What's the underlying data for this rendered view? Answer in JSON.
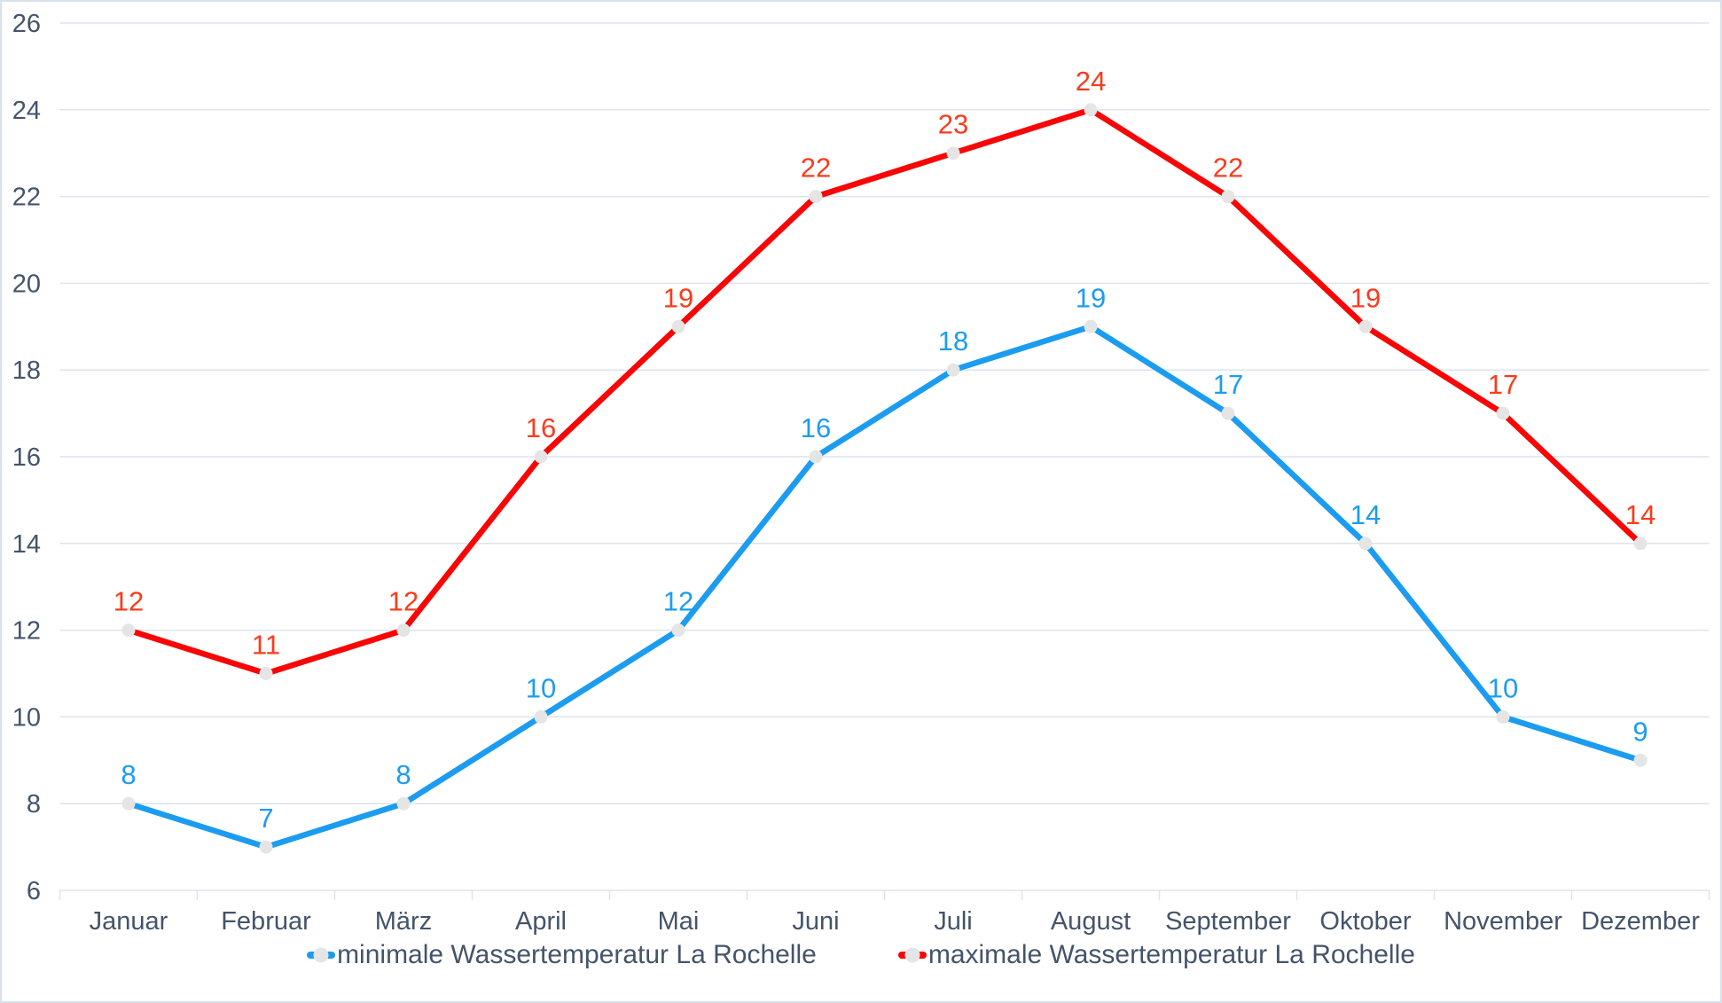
{
  "chart_data": {
    "type": "line",
    "title": "",
    "xlabel": "",
    "ylabel": "",
    "categories": [
      "Januar",
      "Februar",
      "März",
      "April",
      "Mai",
      "Juni",
      "Juli",
      "August",
      "September",
      "Oktober",
      "November",
      "Dezember"
    ],
    "y_ticks": [
      6,
      8,
      10,
      12,
      14,
      16,
      18,
      20,
      22,
      24,
      26
    ],
    "ylim": [
      6,
      26
    ],
    "grid": true,
    "legend_position": "bottom",
    "series": [
      {
        "name": "minimale Wassertemperatur La Rochelle",
        "color": "#1c9cf0",
        "label_color": "#1c9cf0",
        "values": [
          8,
          7,
          8,
          10,
          12,
          16,
          18,
          19,
          17,
          14,
          10,
          9
        ]
      },
      {
        "name": "maximale Wassertemperatur La Rochelle",
        "color": "#f90505",
        "label_color": "#fa3b1c",
        "values": [
          12,
          11,
          12,
          16,
          19,
          22,
          23,
          24,
          22,
          19,
          17,
          14
        ]
      }
    ],
    "marker_color": "#e5e5e5",
    "axis_text_color": "#44546A",
    "grid_color": "#dee3ed",
    "border_color": "#d8e1ee"
  },
  "legend": {
    "items": [
      {
        "label": "minimale Wassertemperatur La Rochelle"
      },
      {
        "label": "maximale Wassertemperatur La Rochelle"
      }
    ]
  }
}
